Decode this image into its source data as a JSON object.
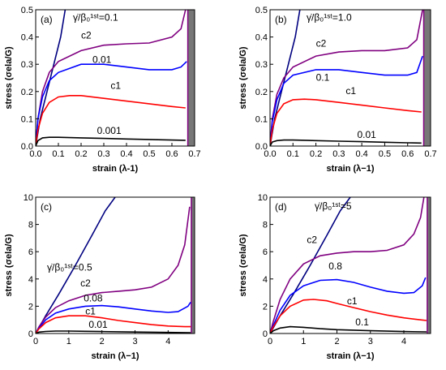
{
  "chart_data": [
    {
      "type": "line",
      "panel": "(a)",
      "xlabel": "strain (λ-1)",
      "ylabel": "stress (σela/G)",
      "xlim": [
        0,
        0.7
      ],
      "ylim": [
        0,
        0.5
      ],
      "xticks": [
        "0.0",
        "0.1",
        "0.2",
        "0.3",
        "0.4",
        "0.5",
        "0.6",
        "0.7"
      ],
      "yticks": [
        "0.0",
        "0.1",
        "0.2",
        "0.3",
        "0.4",
        "0.5"
      ],
      "rate_label": "γ̇/β₀¹ˢᵗ=0.1",
      "limit_x": 0.67,
      "series": [
        {
          "label": "",
          "color": "#000080",
          "x": [
            0,
            0.02,
            0.05,
            0.08,
            0.11,
            0.13
          ],
          "y": [
            0,
            0.1,
            0.2,
            0.3,
            0.4,
            0.5
          ]
        },
        {
          "label": "c2",
          "color": "#800080",
          "x": [
            0,
            0.01,
            0.03,
            0.06,
            0.1,
            0.2,
            0.3,
            0.4,
            0.5,
            0.6,
            0.64,
            0.66
          ],
          "y": [
            0,
            0.1,
            0.2,
            0.27,
            0.31,
            0.35,
            0.37,
            0.375,
            0.378,
            0.4,
            0.43,
            0.5
          ]
        },
        {
          "label": "0.01",
          "color": "#0000ff",
          "x": [
            0,
            0.01,
            0.03,
            0.06,
            0.1,
            0.2,
            0.3,
            0.4,
            0.5,
            0.6,
            0.64,
            0.665
          ],
          "y": [
            0,
            0.1,
            0.18,
            0.24,
            0.27,
            0.3,
            0.3,
            0.29,
            0.28,
            0.28,
            0.29,
            0.31
          ]
        },
        {
          "label": "c1",
          "color": "#ff0000",
          "x": [
            0,
            0.01,
            0.03,
            0.06,
            0.1,
            0.15,
            0.2,
            0.3,
            0.4,
            0.5,
            0.6,
            0.66
          ],
          "y": [
            0,
            0.06,
            0.12,
            0.16,
            0.18,
            0.185,
            0.185,
            0.175,
            0.165,
            0.155,
            0.145,
            0.14
          ]
        },
        {
          "label": "0.001",
          "color": "#000000",
          "x": [
            0,
            0.01,
            0.03,
            0.06,
            0.1,
            0.2,
            0.3,
            0.4,
            0.5,
            0.6,
            0.66
          ],
          "y": [
            0,
            0.02,
            0.03,
            0.032,
            0.032,
            0.03,
            0.028,
            0.026,
            0.024,
            0.022,
            0.021
          ]
        }
      ]
    },
    {
      "type": "line",
      "panel": "(b)",
      "xlabel": "strain (λ−1)",
      "ylabel": "stress (σela/G)",
      "xlim": [
        0,
        0.7
      ],
      "ylim": [
        0,
        0.5
      ],
      "xticks": [
        "0.0",
        "0.1",
        "0.2",
        "0.3",
        "0.4",
        "0.5",
        "0.6",
        "0.7"
      ],
      "yticks": [
        "0.0",
        "0.1",
        "0.2",
        "0.3",
        "0.4",
        "0.5"
      ],
      "rate_label": "γ̇/β₀¹ˢᵗ=1.0",
      "limit_x": 0.67,
      "series": [
        {
          "label": "",
          "color": "#000080",
          "x": [
            0,
            0.02,
            0.05,
            0.08,
            0.11,
            0.13
          ],
          "y": [
            0,
            0.1,
            0.2,
            0.3,
            0.4,
            0.5
          ]
        },
        {
          "label": "c2",
          "color": "#800080",
          "x": [
            0,
            0.01,
            0.03,
            0.06,
            0.1,
            0.2,
            0.3,
            0.4,
            0.5,
            0.6,
            0.64,
            0.665
          ],
          "y": [
            0,
            0.1,
            0.19,
            0.25,
            0.29,
            0.33,
            0.345,
            0.35,
            0.35,
            0.36,
            0.39,
            0.5
          ]
        },
        {
          "label": "0.1",
          "color": "#0000ff",
          "x": [
            0,
            0.01,
            0.03,
            0.06,
            0.1,
            0.2,
            0.3,
            0.4,
            0.5,
            0.6,
            0.64,
            0.665
          ],
          "y": [
            0,
            0.09,
            0.17,
            0.23,
            0.26,
            0.28,
            0.28,
            0.27,
            0.26,
            0.26,
            0.27,
            0.33
          ]
        },
        {
          "label": "c1",
          "color": "#ff0000",
          "x": [
            0,
            0.01,
            0.03,
            0.06,
            0.1,
            0.15,
            0.2,
            0.3,
            0.4,
            0.5,
            0.6,
            0.66
          ],
          "y": [
            0,
            0.06,
            0.12,
            0.155,
            0.17,
            0.172,
            0.17,
            0.16,
            0.15,
            0.14,
            0.13,
            0.125
          ]
        },
        {
          "label": "0.01",
          "color": "#000000",
          "x": [
            0,
            0.01,
            0.03,
            0.06,
            0.1,
            0.2,
            0.3,
            0.4,
            0.5,
            0.6,
            0.66
          ],
          "y": [
            0,
            0.015,
            0.02,
            0.022,
            0.022,
            0.02,
            0.018,
            0.016,
            0.014,
            0.012,
            0.011
          ]
        }
      ]
    },
    {
      "type": "line",
      "panel": "(c)",
      "xlabel": "strain (λ−1)",
      "ylabel": "stress (σela/G)",
      "xlim": [
        0,
        4.8
      ],
      "ylim": [
        0,
        10
      ],
      "xticks": [
        "0",
        "1",
        "2",
        "3",
        "4"
      ],
      "yticks": [
        "0",
        "2",
        "4",
        "6",
        "8",
        "10"
      ],
      "rate_label": "γ̇/β₀¹ˢᵗ=0.5",
      "limit_x": 4.7,
      "series": [
        {
          "label": "",
          "color": "#000080",
          "x": [
            0,
            0.3,
            0.7,
            1.2,
            1.7,
            2.1,
            2.4
          ],
          "y": [
            0,
            1.3,
            2.9,
            5,
            7.2,
            9,
            10
          ]
        },
        {
          "label": "c2",
          "color": "#800080",
          "x": [
            0,
            0.1,
            0.3,
            0.6,
            1,
            1.5,
            2,
            2.5,
            3,
            3.5,
            4,
            4.3,
            4.5,
            4.65
          ],
          "y": [
            0,
            0.5,
            1.2,
            1.9,
            2.4,
            2.8,
            3,
            3.1,
            3.2,
            3.4,
            4,
            5,
            6.5,
            9.3
          ]
        },
        {
          "label": "0.08",
          "color": "#0000ff",
          "x": [
            0,
            0.1,
            0.3,
            0.6,
            1,
            1.5,
            2,
            2.5,
            3,
            3.5,
            4,
            4.3,
            4.6,
            4.68
          ],
          "y": [
            0,
            0.4,
            1,
            1.5,
            1.8,
            2,
            2.05,
            1.95,
            1.8,
            1.65,
            1.55,
            1.6,
            2,
            2.3
          ]
        },
        {
          "label": "c1",
          "color": "#ff0000",
          "x": [
            0,
            0.1,
            0.3,
            0.6,
            1,
            1.5,
            2,
            2.5,
            3,
            3.5,
            4,
            4.5,
            4.68
          ],
          "y": [
            0,
            0.35,
            0.8,
            1.15,
            1.3,
            1.3,
            1.15,
            0.95,
            0.8,
            0.65,
            0.55,
            0.5,
            0.5
          ]
        },
        {
          "label": "0.01",
          "color": "#000000",
          "x": [
            0,
            0.1,
            0.3,
            0.6,
            1,
            1.5,
            2,
            3,
            4,
            4.68
          ],
          "y": [
            0,
            0.1,
            0.15,
            0.18,
            0.18,
            0.16,
            0.14,
            0.11,
            0.08,
            0.06
          ]
        }
      ]
    },
    {
      "type": "line",
      "panel": "(d)",
      "xlabel": "strain (λ−1)",
      "ylabel": "stress (σela/G)",
      "xlim": [
        0,
        4.8
      ],
      "ylim": [
        0,
        10
      ],
      "xticks": [
        "0",
        "1",
        "2",
        "3",
        "4"
      ],
      "yticks": [
        "0",
        "2",
        "4",
        "6",
        "8",
        "10"
      ],
      "rate_label": "γ̇/β₀¹ˢᵗ=5",
      "limit_x": 4.7,
      "series": [
        {
          "label": "",
          "color": "#000080",
          "x": [
            0,
            0.3,
            0.7,
            1.2,
            1.7,
            2.1,
            2.4
          ],
          "y": [
            0,
            1.3,
            2.9,
            5,
            7.2,
            9,
            10
          ]
        },
        {
          "label": "c2",
          "color": "#800080",
          "x": [
            0,
            0.1,
            0.3,
            0.6,
            1,
            1.5,
            2,
            2.5,
            3,
            3.5,
            4,
            4.3,
            4.5,
            4.6
          ],
          "y": [
            0,
            0.9,
            2.5,
            4,
            5.1,
            5.7,
            5.9,
            6,
            6,
            6.1,
            6.5,
            7.3,
            8.5,
            10
          ]
        },
        {
          "label": "0.8",
          "color": "#0000ff",
          "x": [
            0,
            0.1,
            0.3,
            0.6,
            1,
            1.5,
            2,
            2.5,
            3,
            3.5,
            4,
            4.3,
            4.55,
            4.65
          ],
          "y": [
            0,
            0.6,
            1.7,
            2.8,
            3.5,
            3.9,
            3.95,
            3.75,
            3.4,
            3.1,
            2.95,
            3,
            3.5,
            4.1
          ]
        },
        {
          "label": "c1",
          "color": "#ff0000",
          "x": [
            0,
            0.1,
            0.3,
            0.6,
            1,
            1.3,
            1.7,
            2,
            2.5,
            3,
            3.5,
            4,
            4.5,
            4.68
          ],
          "y": [
            0,
            0.5,
            1.3,
            2,
            2.45,
            2.5,
            2.4,
            2.2,
            1.9,
            1.6,
            1.35,
            1.15,
            1,
            0.95
          ]
        },
        {
          "label": "0.1",
          "color": "#000000",
          "x": [
            0,
            0.1,
            0.3,
            0.6,
            1,
            1.5,
            2,
            3,
            4,
            4.68
          ],
          "y": [
            0,
            0.2,
            0.4,
            0.5,
            0.45,
            0.35,
            0.28,
            0.2,
            0.14,
            0.12
          ]
        }
      ]
    }
  ],
  "style": {
    "limit_band_color": "#777777",
    "limit_line_color": "#800080",
    "frame_color": "#000000"
  }
}
